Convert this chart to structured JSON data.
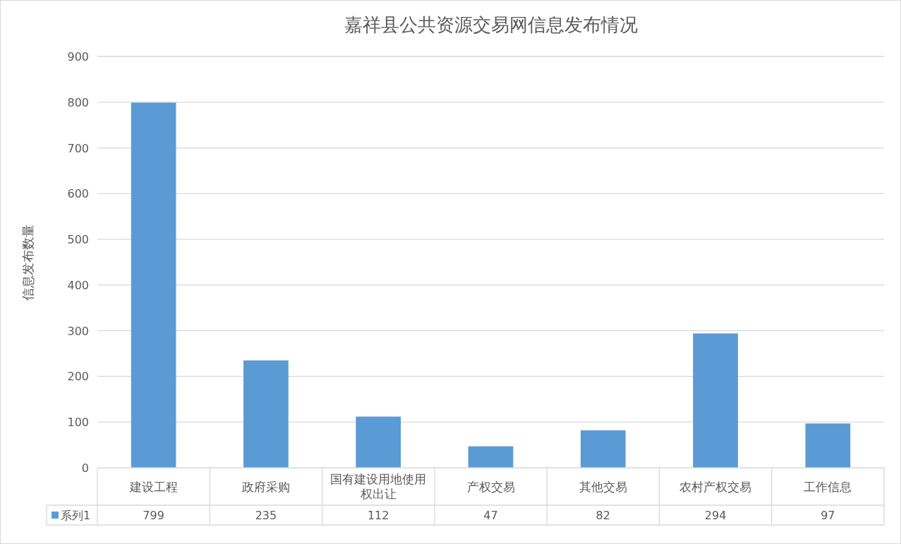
{
  "chart_data": {
    "type": "bar",
    "title": "嘉祥县公共资源交易网信息发布情况",
    "ylabel": "信息发布数量",
    "categories": [
      "建设工程",
      "政府采购",
      "国有建设用地使用权出让",
      "产权交易",
      "其他交易",
      "农村产权交易",
      "工作信息"
    ],
    "series": [
      {
        "name": "系列1",
        "color": "#5b9bd5",
        "values": [
          799,
          235,
          112,
          47,
          82,
          294,
          97
        ]
      }
    ],
    "ylim": [
      0,
      900
    ],
    "yticks": [
      0,
      100,
      200,
      300,
      400,
      500,
      600,
      700,
      800,
      900
    ],
    "grid": "y",
    "data_labels": true,
    "legend": "bottom"
  }
}
